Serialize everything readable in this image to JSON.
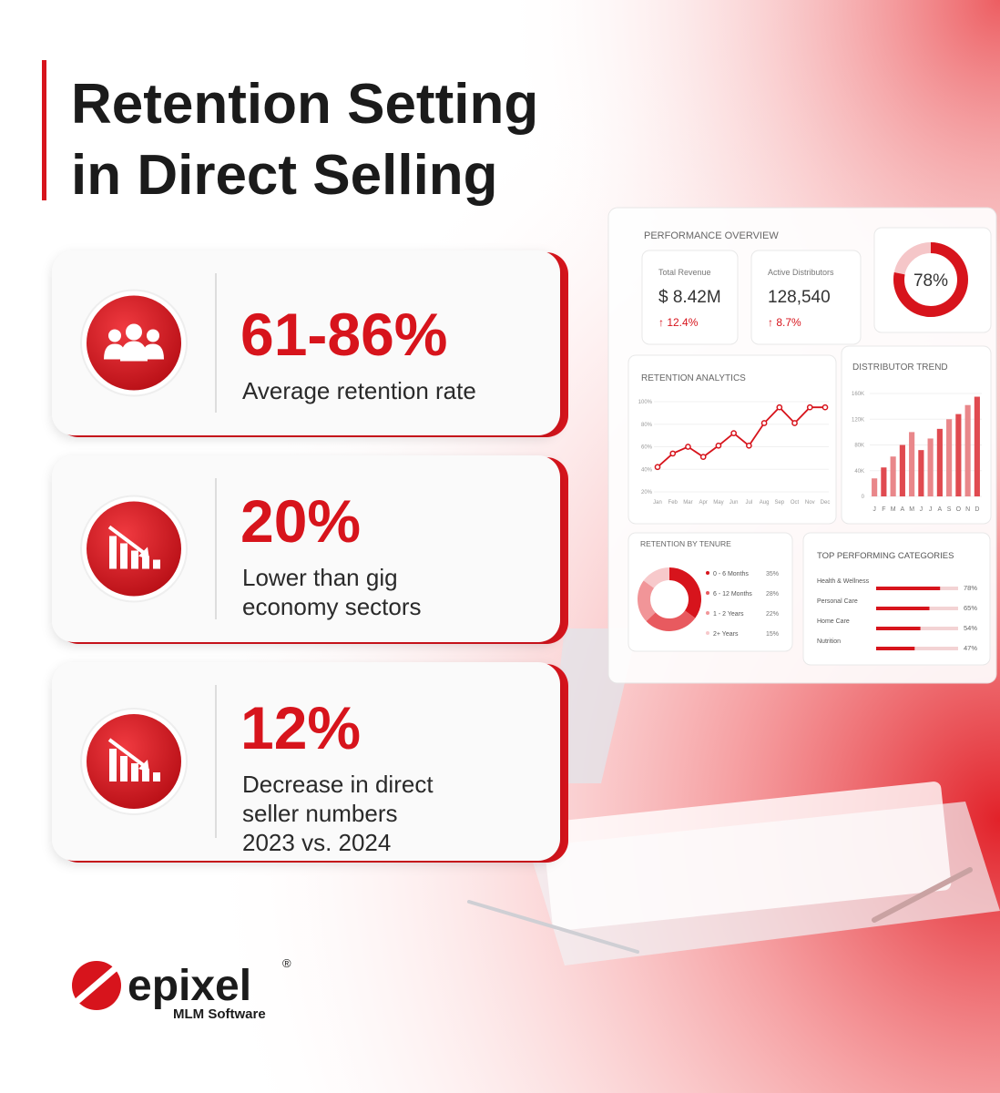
{
  "header": {
    "title_lines": [
      "Retention Setting",
      "in Direct Selling"
    ]
  },
  "stats": [
    {
      "value": "61-86%",
      "label_lines": [
        "Average retention rate"
      ]
    },
    {
      "value": "20%",
      "label_lines": [
        "Lower than gig",
        "economy sectors"
      ]
    },
    {
      "value": "12%",
      "label_lines": [
        "Decrease in direct",
        "seller numbers",
        "2023 vs. 2024"
      ]
    }
  ],
  "dashboard": {
    "title": "PERFORMANCE OVERVIEW",
    "kpis": [
      {
        "label": "Total Revenue",
        "value": "$ 8.42M",
        "change": "↑ 12.4%"
      },
      {
        "label": "Active Distributors",
        "value": "128,540",
        "change": "↑ 8.7%"
      }
    ],
    "gauge": {
      "value": 78,
      "value_label": "78%"
    },
    "retention_analytics": {
      "title": "RETENTION ANALYTICS",
      "categories": [
        "Jan",
        "Feb",
        "Mar",
        "Apr",
        "May",
        "Jun",
        "Jul",
        "Aug",
        "Sep",
        "Oct",
        "Nov",
        "Dec"
      ],
      "values": [
        42,
        54,
        60,
        51,
        61,
        72,
        61,
        81,
        95,
        81,
        95,
        95
      ],
      "ylim": [
        20,
        100
      ],
      "yticks": [
        {
          "value": 20,
          "label": "20%"
        },
        {
          "value": 40,
          "label": "40%"
        },
        {
          "value": 60,
          "label": "60%"
        },
        {
          "value": 80,
          "label": "80%"
        },
        {
          "value": 100,
          "label": "100%"
        }
      ]
    },
    "distributor_trend": {
      "title": "DISTRIBUTOR TREND",
      "categories": [
        "J",
        "F",
        "M",
        "A",
        "M",
        "J",
        "J",
        "A",
        "S",
        "O",
        "N",
        "D"
      ],
      "values": [
        28000,
        45000,
        62000,
        80000,
        100000,
        72000,
        90000,
        105000,
        120000,
        128000,
        142000,
        155000
      ],
      "ylim": [
        0,
        160000
      ],
      "yticks": [
        0,
        {
          "value": 40000,
          "label": "40K"
        },
        {
          "value": 80000,
          "label": "80K"
        },
        {
          "value": 120000,
          "label": "120K"
        },
        {
          "value": 160000,
          "label": "160K"
        }
      ]
    },
    "retention_by_tenure": {
      "title": "RETENTION BY TENURE",
      "categories": [
        "0 - 6 Months",
        "6 - 12 Months",
        "1 - 2 Years",
        "2+ Years"
      ],
      "values": [
        35,
        28,
        22,
        15
      ],
      "value_labels": [
        "35%",
        "28%",
        "22%",
        "15%"
      ]
    },
    "top_categories": {
      "title": "TOP PERFORMING CATEGORIES",
      "categories": [
        "Health & Wellness",
        "Personal Care",
        "Home Care",
        "Nutrition"
      ],
      "values": [
        78,
        65,
        54,
        47
      ],
      "value_labels": [
        "78%",
        "65%",
        "54%",
        "47%"
      ]
    }
  },
  "logo": {
    "name": "epixel",
    "registered": "®",
    "tagline": "MLM Software"
  }
}
